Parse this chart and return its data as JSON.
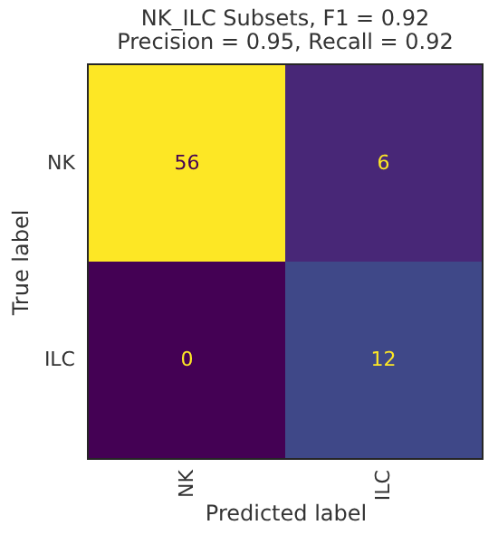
{
  "chart_data": {
    "type": "heatmap",
    "title": "NK_ILC Subsets, F1 = 0.92",
    "subtitle": "Precision = 0.95, Recall = 0.92",
    "xlabel": "Predicted label",
    "ylabel": "True label",
    "categories": [
      "NK",
      "ILC"
    ],
    "y_categories": [
      "NK",
      "ILC"
    ],
    "cells": [
      [
        56,
        6
      ],
      [
        0,
        12
      ]
    ],
    "data_labels": true,
    "grid": false
  }
}
